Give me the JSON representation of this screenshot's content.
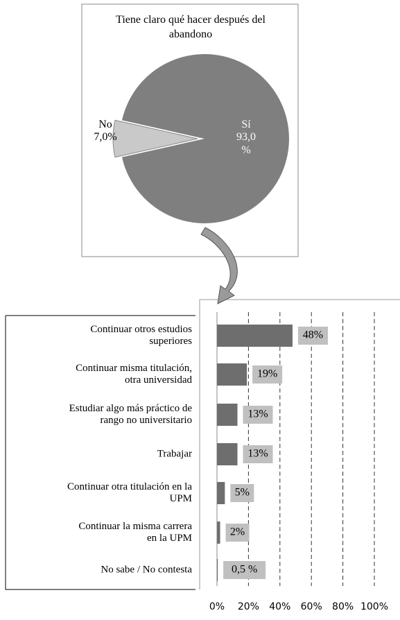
{
  "chart_data": [
    {
      "type": "pie",
      "title": "Tiene claro qué hacer después del abandono",
      "categories": [
        "Sí",
        "No"
      ],
      "values": [
        93.0,
        7.0
      ],
      "value_labels": [
        "93,0 %",
        "7,0%"
      ],
      "colors": [
        "#7f7f7f",
        "#c9c9c9"
      ]
    },
    {
      "type": "hbar",
      "categories": [
        "Continuar otros estudios superiores",
        "Continuar misma titulación, otra universidad",
        "Estudiar algo más práctico de rango no universitario",
        "Trabajar",
        "Continuar otra titulación en la UPM",
        "Continuar la misma carrera en la UPM",
        "No sabe / No contesta"
      ],
      "values": [
        48,
        19,
        13,
        13,
        5,
        2,
        0.5
      ],
      "value_labels": [
        "48%",
        "19%",
        "13%",
        "13%",
        "5%",
        "2%",
        "0,5 %"
      ],
      "color": "#6e6e6e",
      "xlim": [
        0,
        100
      ],
      "xticks": [
        {
          "value": 0,
          "label": "0%"
        },
        {
          "value": 20,
          "label": "20%"
        },
        {
          "value": 40,
          "label": "40%"
        },
        {
          "value": 60,
          "label": "60%"
        },
        {
          "value": 80,
          "label": "80%"
        },
        {
          "value": 100,
          "label": "100%"
        }
      ],
      "grid": true
    }
  ]
}
